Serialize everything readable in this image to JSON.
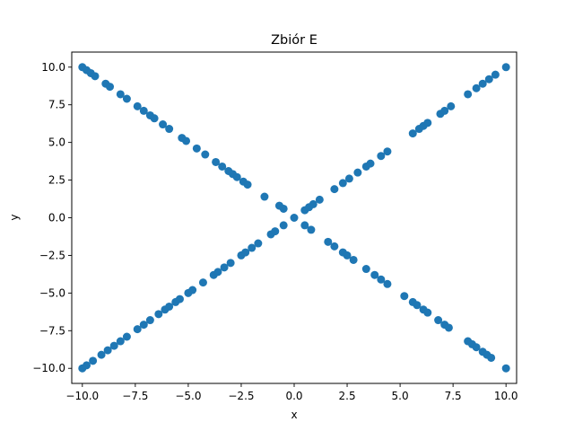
{
  "chart_data": {
    "type": "scatter",
    "title": "Zbiór E",
    "xlabel": "x",
    "ylabel": "y",
    "xlim": [
      -10.5,
      10.5
    ],
    "ylim": [
      -11.0,
      11.0
    ],
    "xticks": [
      -10.0,
      -7.5,
      -5.0,
      -2.5,
      0.0,
      2.5,
      5.0,
      7.5,
      10.0
    ],
    "xtick_labels": [
      "−10.0",
      "−7.5",
      "−5.0",
      "−2.5",
      "0.0",
      "2.5",
      "5.0",
      "7.5",
      "10.0"
    ],
    "yticks": [
      -10.0,
      -7.5,
      -5.0,
      -2.5,
      0.0,
      2.5,
      5.0,
      7.5,
      10.0
    ],
    "ytick_labels": [
      "−10.0",
      "−7.5",
      "−5.0",
      "−2.5",
      "0.0",
      "2.5",
      "5.0",
      "7.5",
      "10.0"
    ],
    "grid": false,
    "color": "#1f77b4",
    "series": [
      {
        "x": [
          -10.0,
          -9.8,
          -9.6,
          -9.4,
          -8.9,
          -8.7,
          -8.2,
          -7.9,
          -7.4,
          -7.1,
          -6.8,
          -6.6,
          -6.2,
          -5.9,
          -5.3,
          -5.1,
          -4.6,
          -4.2,
          -3.7,
          -3.4,
          -3.1,
          -2.9,
          -2.7,
          -2.4,
          -2.2,
          -1.4,
          -0.7,
          -0.5,
          0.0,
          0.5,
          0.8,
          1.6,
          1.9,
          2.3,
          2.5,
          2.8,
          3.4,
          3.8,
          4.1,
          4.4,
          5.2,
          5.6,
          5.8,
          6.1,
          6.3,
          6.8,
          7.1,
          7.3,
          8.2,
          8.4,
          8.6,
          8.9,
          9.1,
          9.3,
          10.0
        ],
        "y": [
          10.0,
          9.8,
          9.6,
          9.4,
          8.9,
          8.7,
          8.2,
          7.9,
          7.4,
          7.1,
          6.8,
          6.6,
          6.2,
          5.9,
          5.3,
          5.1,
          4.6,
          4.2,
          3.7,
          3.4,
          3.1,
          2.9,
          2.7,
          2.4,
          2.2,
          1.4,
          0.8,
          0.6,
          0.0,
          -0.5,
          -0.8,
          -1.6,
          -1.9,
          -2.3,
          -2.5,
          -2.8,
          -3.4,
          -3.8,
          -4.1,
          -4.4,
          -5.2,
          -5.6,
          -5.8,
          -6.1,
          -6.3,
          -6.8,
          -7.1,
          -7.3,
          -8.2,
          -8.4,
          -8.6,
          -8.9,
          -9.1,
          -9.3,
          -10.0
        ]
      },
      {
        "x": [
          -10.0,
          -9.8,
          -9.5,
          -9.1,
          -8.8,
          -8.5,
          -8.2,
          -7.9,
          -7.4,
          -7.1,
          -6.8,
          -6.4,
          -6.1,
          -5.9,
          -5.6,
          -5.4,
          -5.0,
          -4.8,
          -4.3,
          -3.8,
          -3.6,
          -3.3,
          -3.0,
          -2.5,
          -2.3,
          -2.0,
          -1.7,
          -1.1,
          -0.9,
          -0.5,
          0.5,
          0.7,
          0.9,
          1.2,
          1.9,
          2.3,
          2.6,
          3.0,
          3.4,
          3.6,
          4.1,
          4.4,
          5.6,
          5.9,
          6.1,
          6.3,
          6.9,
          7.1,
          7.4,
          8.2,
          8.6,
          8.9,
          9.2,
          9.5,
          10.0
        ],
        "y": [
          -10.0,
          -9.8,
          -9.5,
          -9.1,
          -8.8,
          -8.5,
          -8.2,
          -7.9,
          -7.4,
          -7.1,
          -6.8,
          -6.4,
          -6.1,
          -5.9,
          -5.6,
          -5.4,
          -5.0,
          -4.8,
          -4.3,
          -3.8,
          -3.6,
          -3.3,
          -3.0,
          -2.5,
          -2.3,
          -2.0,
          -1.7,
          -1.1,
          -0.9,
          -0.5,
          0.5,
          0.7,
          0.9,
          1.2,
          1.9,
          2.3,
          2.6,
          3.0,
          3.4,
          3.6,
          4.1,
          4.4,
          5.6,
          5.9,
          6.1,
          6.3,
          6.9,
          7.1,
          7.4,
          8.2,
          8.6,
          8.9,
          9.2,
          9.5,
          10.0
        ]
      }
    ]
  }
}
